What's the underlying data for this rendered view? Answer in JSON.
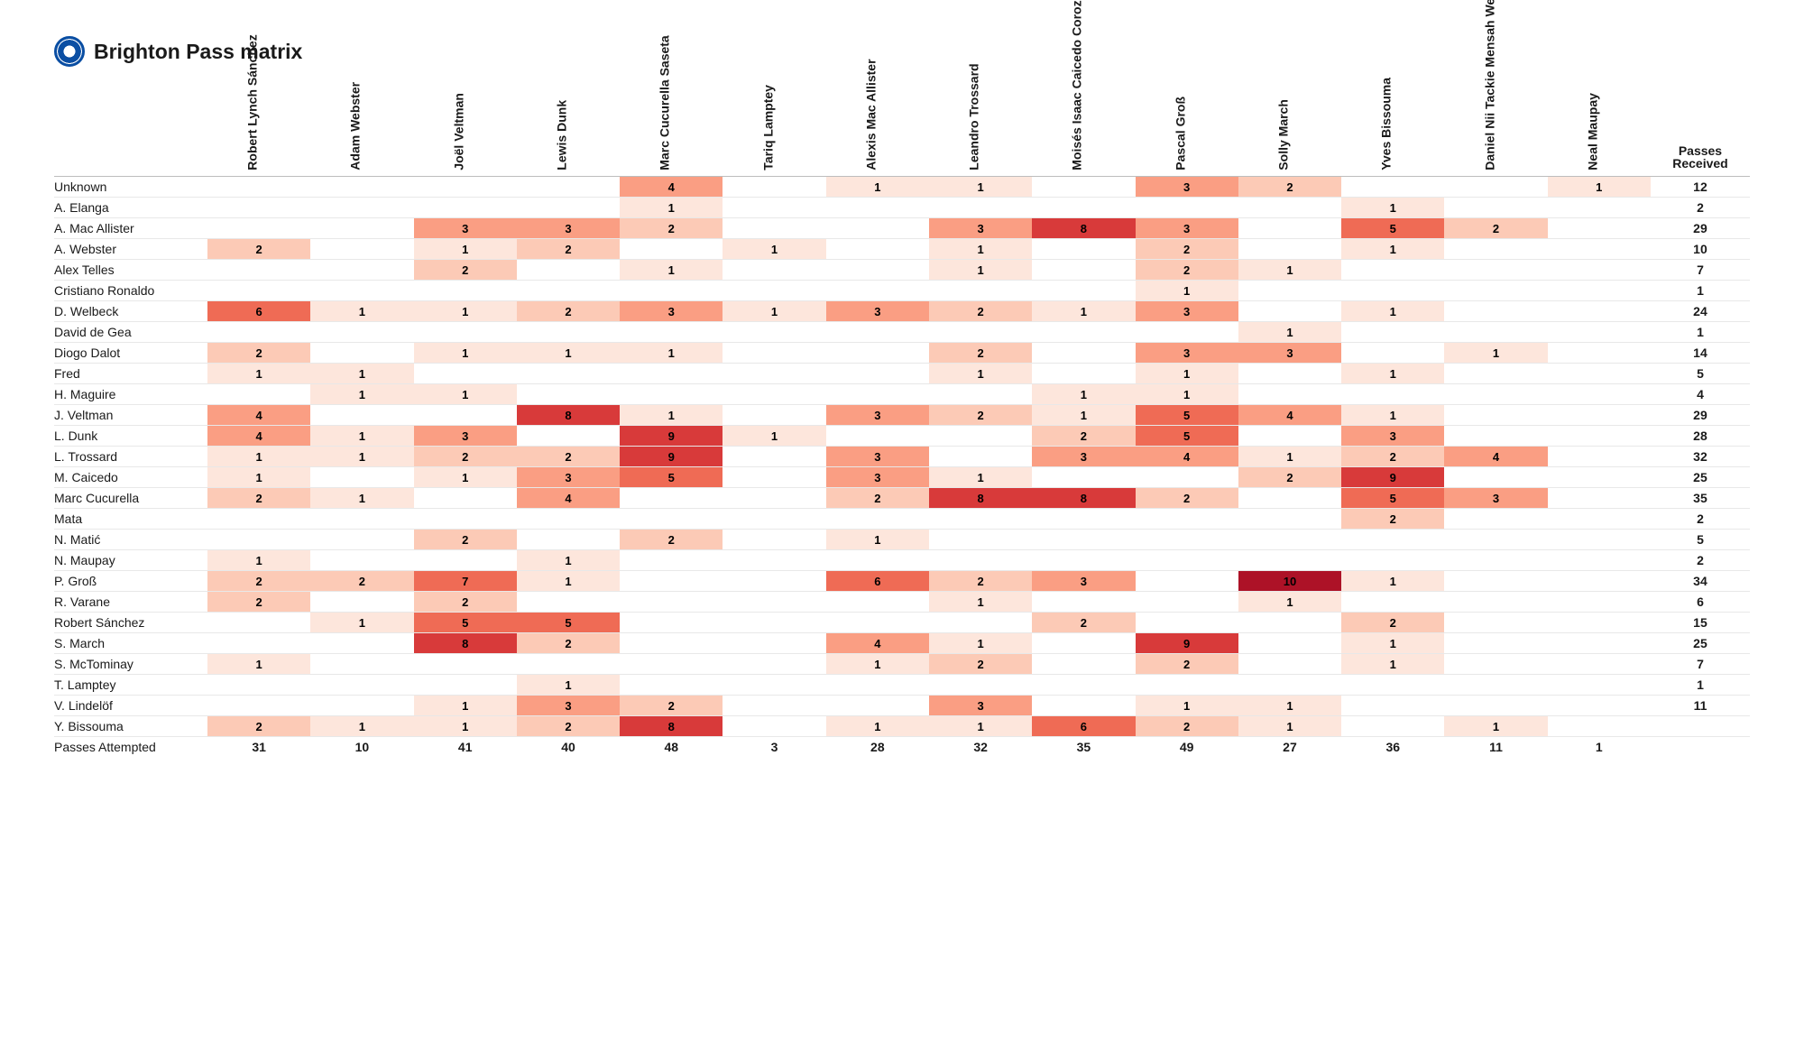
{
  "title": "Brighton Pass matrix",
  "heatmap": {
    "type": "heatmap",
    "base_color": "#ffffff",
    "scale_colors": [
      "#fde6dc",
      "#fccab6",
      "#fa9e83",
      "#ef6b55",
      "#d83a3a",
      "#ad1227"
    ],
    "scale_thresholds": [
      1,
      2,
      3,
      5,
      8,
      10
    ],
    "grid_border_color": "#e8e8e8",
    "header_border_color": "#bdbdbd",
    "label_fontsize": 14,
    "cell_fontsize": 13,
    "cell_fontweight": 700
  },
  "passes_received_header": [
    "Passes",
    "Received"
  ],
  "passes_attempted_label": "Passes Attempted",
  "columns": [
    "Robert Lynch Sánchez",
    "Adam Webster",
    "Joël Veltman",
    "Lewis Dunk",
    "Marc Cucurella Saseta",
    "Tariq Lamptey",
    "Alexis Mac Allister",
    "Leandro Trossard",
    "Moisés Isaac Caicedo Corozo",
    "Pascal Groß",
    "Solly March",
    "Yves Bissouma",
    "Daniel Nii Tackie Mensah Welbeck",
    "Neal Maupay"
  ],
  "rows": [
    {
      "label": "Unknown",
      "cells": [
        null,
        null,
        null,
        null,
        4,
        null,
        1,
        1,
        null,
        3,
        2,
        null,
        null,
        1
      ],
      "total": 12
    },
    {
      "label": "A. Elanga",
      "cells": [
        null,
        null,
        null,
        null,
        1,
        null,
        null,
        null,
        null,
        null,
        null,
        1,
        null,
        null
      ],
      "total": 2
    },
    {
      "label": "A. Mac Allister",
      "cells": [
        null,
        null,
        3,
        3,
        2,
        null,
        null,
        3,
        8,
        3,
        null,
        5,
        2,
        null
      ],
      "total": 29
    },
    {
      "label": "A. Webster",
      "cells": [
        2,
        null,
        1,
        2,
        null,
        1,
        null,
        1,
        null,
        2,
        null,
        1,
        null,
        null
      ],
      "total": 10
    },
    {
      "label": "Alex Telles",
      "cells": [
        null,
        null,
        2,
        null,
        1,
        null,
        null,
        1,
        null,
        2,
        1,
        null,
        null,
        null
      ],
      "total": 7
    },
    {
      "label": "Cristiano Ronaldo",
      "cells": [
        null,
        null,
        null,
        null,
        null,
        null,
        null,
        null,
        null,
        1,
        null,
        null,
        null,
        null
      ],
      "total": 1
    },
    {
      "label": "D. Welbeck",
      "cells": [
        6,
        1,
        1,
        2,
        3,
        1,
        3,
        2,
        1,
        3,
        null,
        1,
        null,
        null
      ],
      "total": 24
    },
    {
      "label": "David de Gea",
      "cells": [
        null,
        null,
        null,
        null,
        null,
        null,
        null,
        null,
        null,
        null,
        1,
        null,
        null,
        null
      ],
      "total": 1
    },
    {
      "label": "Diogo Dalot",
      "cells": [
        2,
        null,
        1,
        1,
        1,
        null,
        null,
        2,
        null,
        3,
        3,
        null,
        1,
        null
      ],
      "total": 14
    },
    {
      "label": "Fred",
      "cells": [
        1,
        1,
        null,
        null,
        null,
        null,
        null,
        1,
        null,
        1,
        null,
        1,
        null,
        null
      ],
      "total": 5
    },
    {
      "label": "H. Maguire",
      "cells": [
        null,
        1,
        1,
        null,
        null,
        null,
        null,
        null,
        1,
        1,
        null,
        null,
        null,
        null
      ],
      "total": 4
    },
    {
      "label": "J. Veltman",
      "cells": [
        4,
        null,
        null,
        8,
        1,
        null,
        3,
        2,
        1,
        5,
        4,
        1,
        null,
        null
      ],
      "total": 29
    },
    {
      "label": "L. Dunk",
      "cells": [
        4,
        1,
        3,
        null,
        9,
        1,
        null,
        null,
        2,
        5,
        null,
        3,
        null,
        null
      ],
      "total": 28
    },
    {
      "label": "L. Trossard",
      "cells": [
        1,
        1,
        2,
        2,
        9,
        null,
        3,
        null,
        3,
        4,
        1,
        2,
        4,
        null
      ],
      "total": 32
    },
    {
      "label": "M. Caicedo",
      "cells": [
        1,
        null,
        1,
        3,
        5,
        null,
        3,
        1,
        null,
        null,
        2,
        9,
        null,
        null
      ],
      "total": 25
    },
    {
      "label": "Marc Cucurella",
      "cells": [
        2,
        1,
        null,
        4,
        null,
        null,
        2,
        8,
        8,
        2,
        null,
        5,
        3,
        null
      ],
      "total": 35
    },
    {
      "label": "Mata",
      "cells": [
        null,
        null,
        null,
        null,
        null,
        null,
        null,
        null,
        null,
        null,
        null,
        2,
        null,
        null
      ],
      "total": 2
    },
    {
      "label": "N. Matić",
      "cells": [
        null,
        null,
        2,
        null,
        2,
        null,
        1,
        null,
        null,
        null,
        null,
        null,
        null,
        null
      ],
      "total": 5
    },
    {
      "label": "N. Maupay",
      "cells": [
        1,
        null,
        null,
        1,
        null,
        null,
        null,
        null,
        null,
        null,
        null,
        null,
        null,
        null
      ],
      "total": 2
    },
    {
      "label": "P. Groß",
      "cells": [
        2,
        2,
        7,
        1,
        null,
        null,
        6,
        2,
        3,
        null,
        10,
        1,
        null,
        null
      ],
      "total": 34
    },
    {
      "label": "R. Varane",
      "cells": [
        2,
        null,
        2,
        null,
        null,
        null,
        null,
        1,
        null,
        null,
        1,
        null,
        null,
        null
      ],
      "total": 6
    },
    {
      "label": "Robert Sánchez",
      "cells": [
        null,
        1,
        5,
        5,
        null,
        null,
        null,
        null,
        2,
        null,
        null,
        2,
        null,
        null
      ],
      "total": 15
    },
    {
      "label": "S. March",
      "cells": [
        null,
        null,
        8,
        2,
        null,
        null,
        4,
        1,
        null,
        9,
        null,
        1,
        null,
        null
      ],
      "total": 25
    },
    {
      "label": "S. McTominay",
      "cells": [
        1,
        null,
        null,
        null,
        null,
        null,
        1,
        2,
        null,
        2,
        null,
        1,
        null,
        null
      ],
      "total": 7
    },
    {
      "label": "T. Lamptey",
      "cells": [
        null,
        null,
        null,
        1,
        null,
        null,
        null,
        null,
        null,
        null,
        null,
        null,
        null,
        null
      ],
      "total": 1
    },
    {
      "label": "V. Lindelöf",
      "cells": [
        null,
        null,
        1,
        3,
        2,
        null,
        null,
        3,
        null,
        1,
        1,
        null,
        null,
        null
      ],
      "total": 11
    },
    {
      "label": "Y. Bissouma",
      "cells": [
        2,
        1,
        1,
        2,
        8,
        null,
        1,
        1,
        6,
        2,
        1,
        null,
        1,
        null
      ],
      "total": ""
    }
  ],
  "col_totals": [
    31,
    10,
    41,
    40,
    48,
    3,
    28,
    32,
    35,
    49,
    27,
    36,
    11,
    1
  ]
}
